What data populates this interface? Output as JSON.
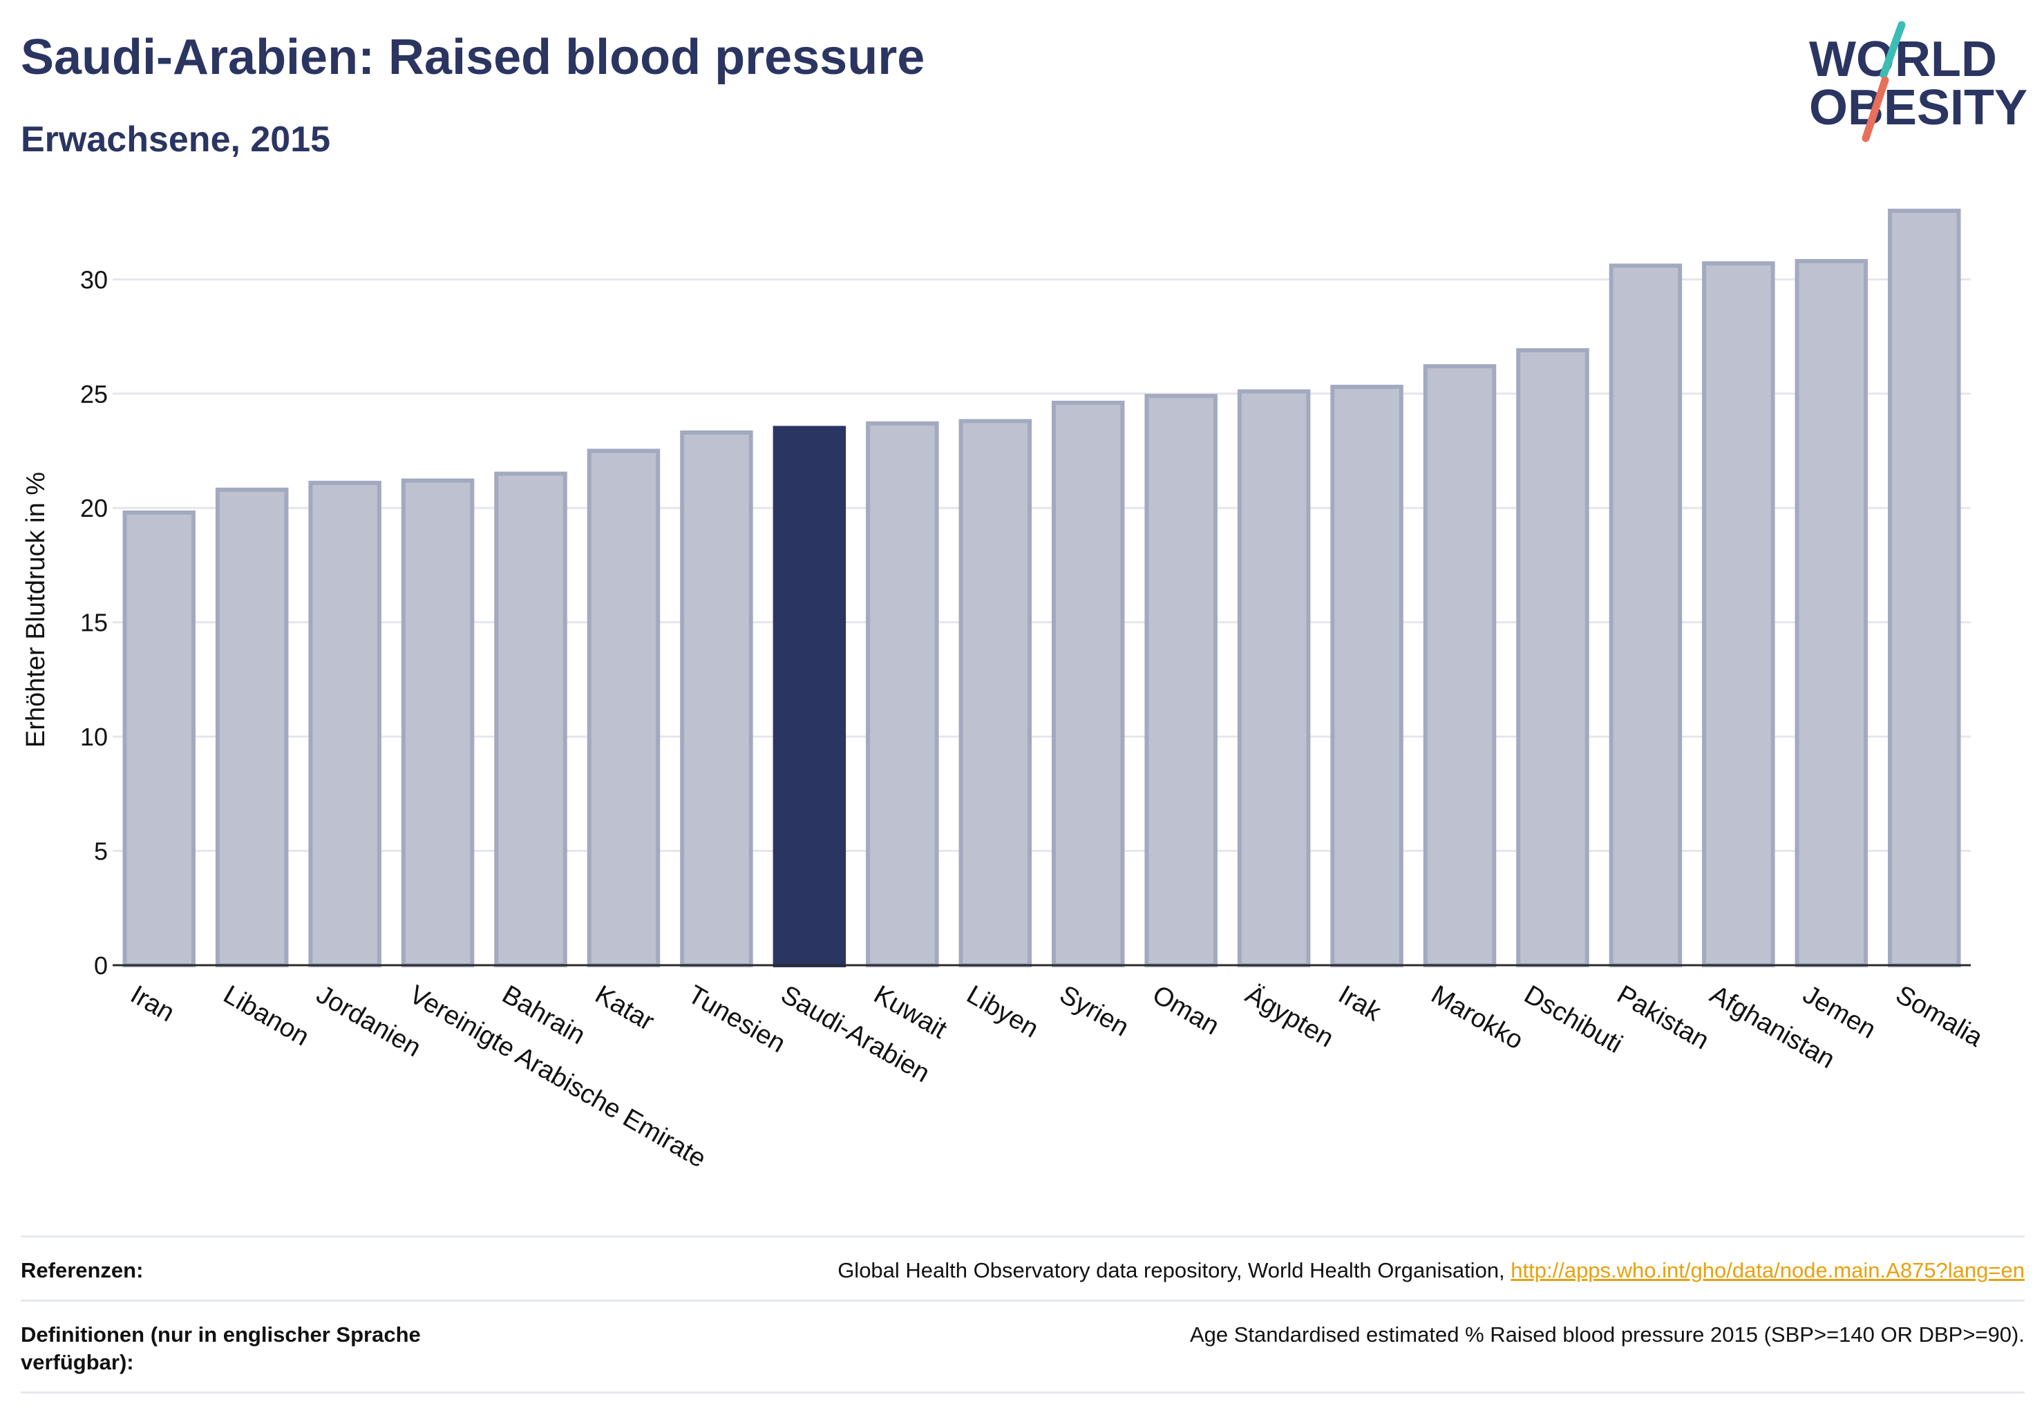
{
  "header": {
    "title": "Saudi-Arabien: Raised blood pressure",
    "subtitle": "Erwachsene, 2015"
  },
  "logo": {
    "line1": "WORLD",
    "line2": "OBESITY"
  },
  "colors": {
    "highlight": "#2b3561",
    "bar_fill": "#bec2d0",
    "bar_stroke": "#a3a9bf",
    "text": "#2b3561",
    "link": "#e8a00f",
    "logo_teal": "#3cbcb4",
    "logo_coral": "#e8705a"
  },
  "chart_data": {
    "type": "bar",
    "ylabel": "Erhöhter Blutdruck in %",
    "ylim": [
      0,
      34
    ],
    "yticks": [
      0,
      5,
      10,
      15,
      20,
      25,
      30
    ],
    "grid": true,
    "highlight": "Saudi-Arabien",
    "categories": [
      "Iran",
      "Libanon",
      "Jordanien",
      "Vereinigte Arabische Emirate",
      "Bahrain",
      "Katar",
      "Tunesien",
      "Saudi-Arabien",
      "Kuwait",
      "Libyen",
      "Syrien",
      "Oman",
      "Ägypten",
      "Irak",
      "Marokko",
      "Dschibuti",
      "Pakistan",
      "Afghanistan",
      "Jemen",
      "Somalia"
    ],
    "values": [
      19.8,
      20.8,
      21.1,
      21.2,
      21.5,
      22.5,
      23.3,
      23.5,
      23.7,
      23.8,
      24.6,
      24.9,
      25.1,
      25.3,
      26.2,
      26.9,
      30.6,
      30.7,
      30.8,
      33.0
    ]
  },
  "footer": {
    "references_label": "Referenzen:",
    "references_text": "Global Health Observatory data repository, World Health Organisation, ",
    "references_link": "http://apps.who.int/gho/data/node.main.A875?lang=en",
    "definitions_label": "Definitionen (nur in englischer Sprache verfügbar):",
    "definitions_text": "Age Standardised estimated % Raised blood pressure 2015 (SBP>=140 OR DBP>=90)."
  }
}
